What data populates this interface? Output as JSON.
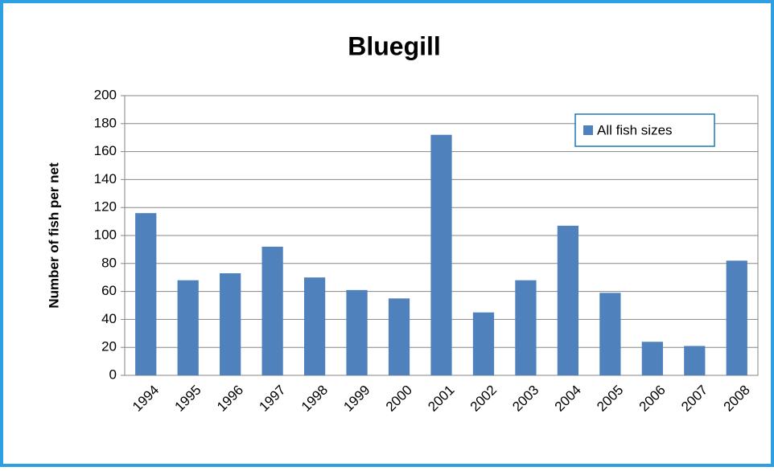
{
  "chart_data": {
    "type": "bar",
    "title": "Bluegill",
    "y_label": "Number of fish per net",
    "categories": [
      "1994",
      "1995",
      "1996",
      "1997",
      "1998",
      "1999",
      "2000",
      "2001",
      "2002",
      "2003",
      "2004",
      "2005",
      "2006",
      "2007",
      "2008"
    ],
    "series": [
      {
        "name": "All fish sizes",
        "color": "#4f81bd",
        "values": [
          116,
          68,
          73,
          92,
          70,
          61,
          55,
          172,
          45,
          68,
          107,
          59,
          24,
          21,
          82
        ]
      }
    ],
    "ylim": [
      0,
      200
    ],
    "yticks": [
      0,
      20,
      40,
      60,
      80,
      100,
      120,
      140,
      160,
      180,
      200
    ],
    "grid": true,
    "legend": "top-right"
  }
}
